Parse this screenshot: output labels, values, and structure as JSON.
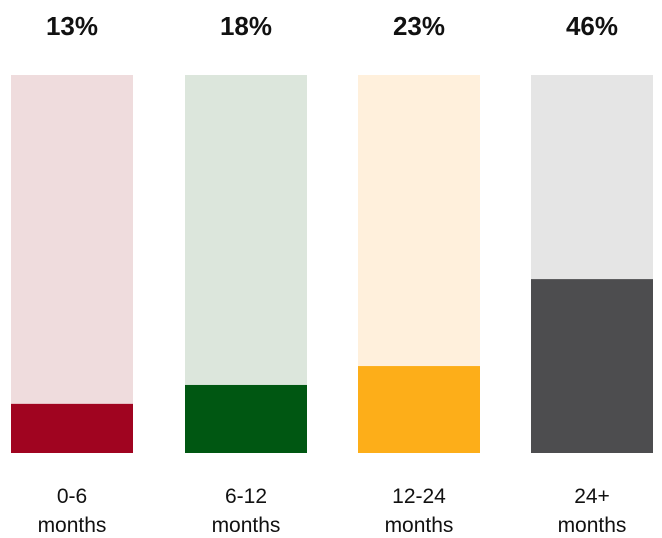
{
  "chart_data": {
    "type": "bar",
    "categories": [
      [
        "0-6",
        "months"
      ],
      [
        "6-12",
        "months"
      ],
      [
        "12-24",
        "months"
      ],
      [
        "24+",
        "months"
      ]
    ],
    "values": [
      13,
      18,
      23,
      46
    ],
    "value_labels": [
      "13%",
      "18%",
      "23%",
      "46%"
    ],
    "ylim": [
      0,
      100
    ],
    "bar_colors": [
      "#a00420",
      "#005712",
      "#fdae19",
      "#4d4d4f"
    ],
    "track_colors": [
      "#efdcdd",
      "#dce6dc",
      "#fff0dc",
      "#e5e5e5"
    ],
    "title": "",
    "xlabel": "",
    "ylabel": "",
    "grid": false
  }
}
